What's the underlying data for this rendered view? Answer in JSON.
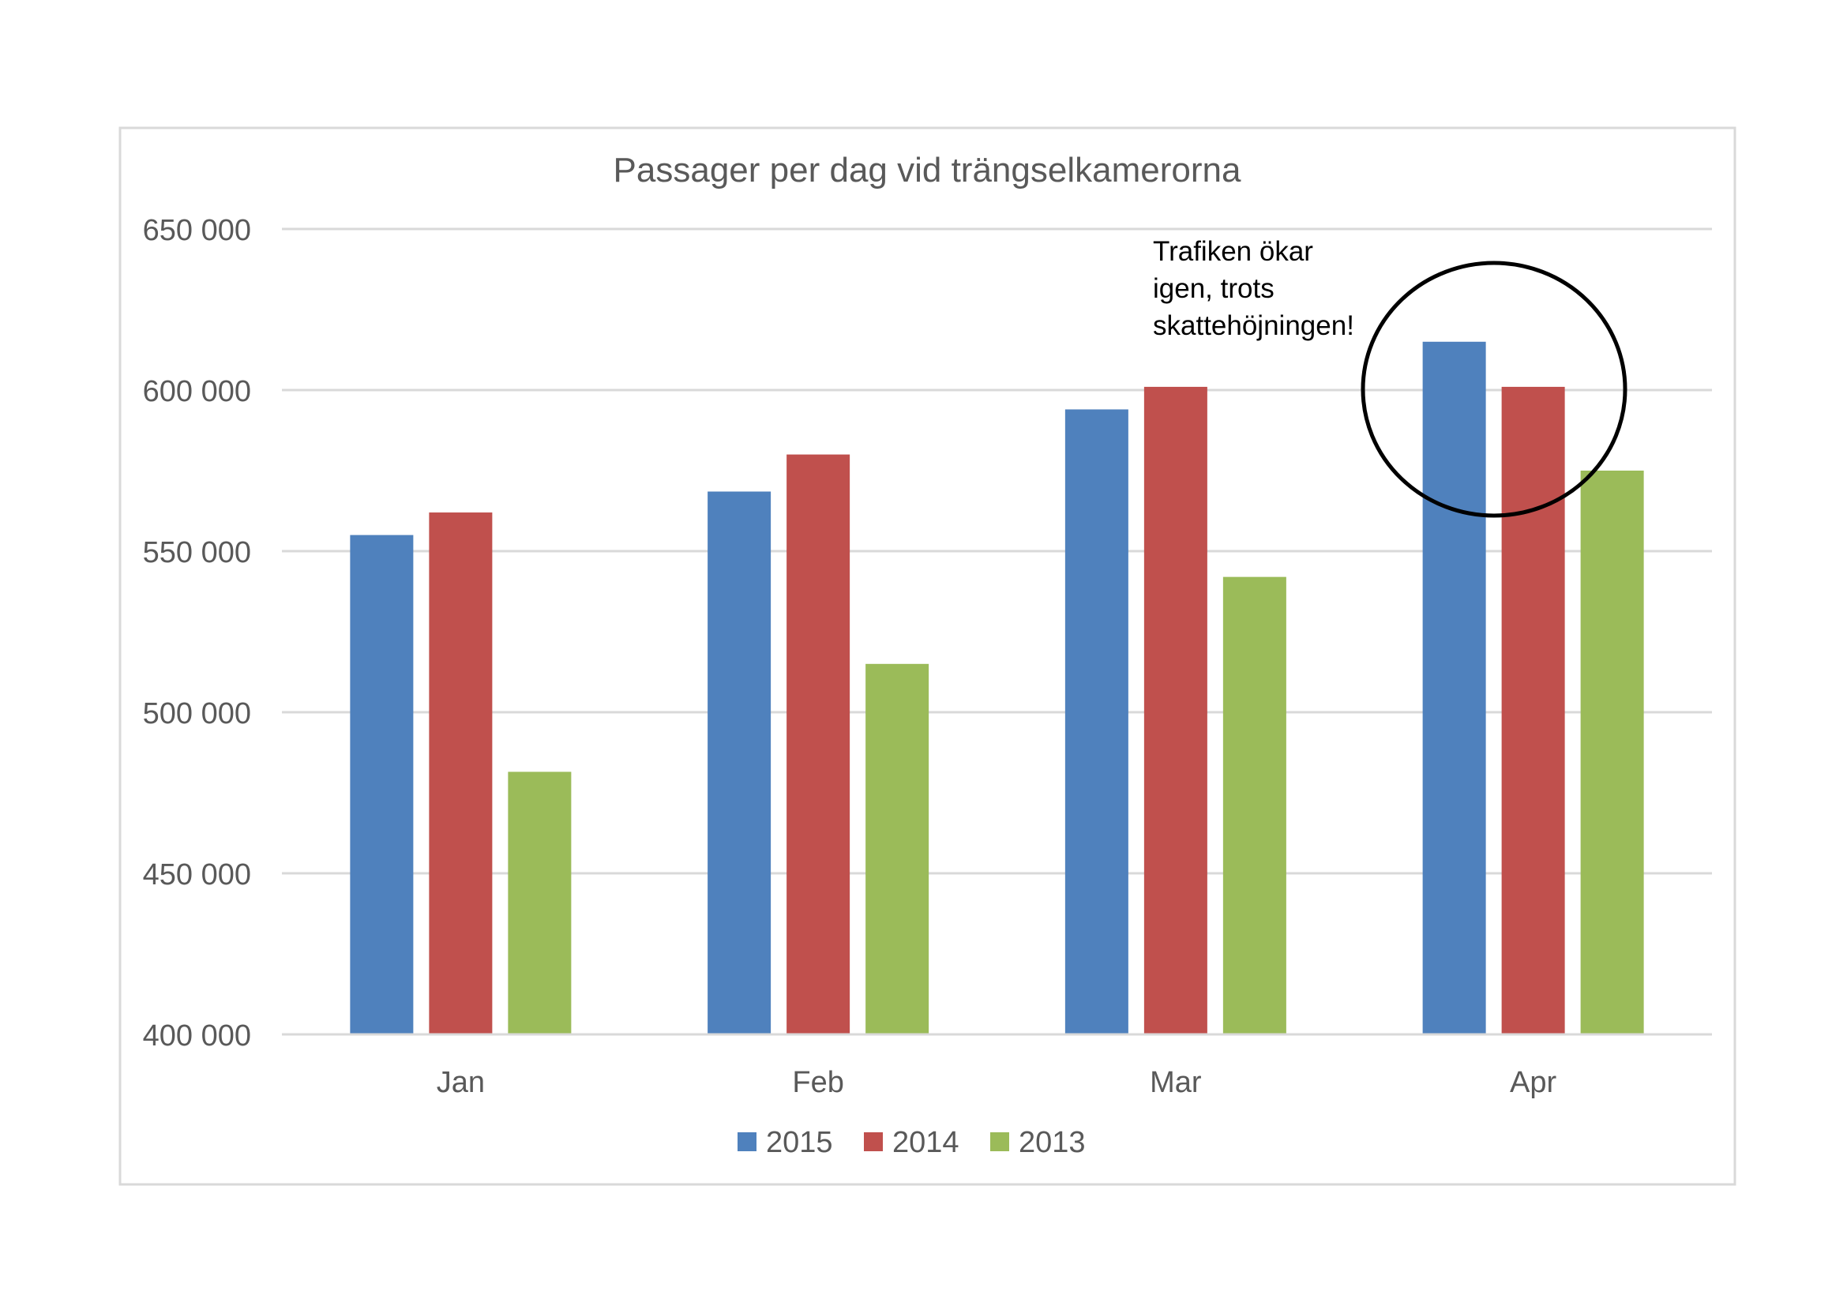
{
  "chart_data": {
    "type": "bar",
    "title": "Passager per dag vid trängselkamerorna",
    "xlabel": "",
    "ylabel": "",
    "categories": [
      "Jan",
      "Feb",
      "Mar",
      "Apr"
    ],
    "series": [
      {
        "name": "2015",
        "color": "#4f81bd",
        "values": [
          555000,
          568500,
          594000,
          615000
        ]
      },
      {
        "name": "2014",
        "color": "#c0504d",
        "values": [
          562000,
          580000,
          601000,
          601000
        ]
      },
      {
        "name": "2013",
        "color": "#9bbb59",
        "values": [
          481500,
          515000,
          542000,
          575000
        ]
      }
    ],
    "ylim": [
      400000,
      650000
    ],
    "yticks": [
      400000,
      450000,
      500000,
      550000,
      600000,
      650000
    ],
    "ytick_labels": [
      "400 000",
      "450 000",
      "500 000",
      "550 000",
      "600 000",
      "650 000"
    ],
    "grid": true,
    "legend_position": "bottom",
    "annotation": {
      "lines": [
        "Trafiken ökar",
        "igen, trots",
        "skattehöjningen!"
      ],
      "highlight": "circle around Apr 2015 and Apr 2014 bars"
    }
  }
}
